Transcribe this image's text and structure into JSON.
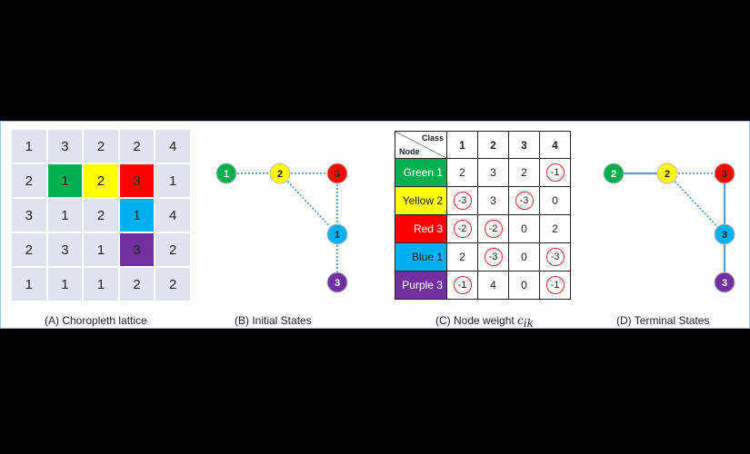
{
  "lattice": {
    "caption": "(A) Choropleth lattice",
    "rows": [
      [
        {
          "v": "1",
          "c": "#dde3ef"
        },
        {
          "v": "3",
          "c": "#dde3ef"
        },
        {
          "v": "2",
          "c": "#dde3ef"
        },
        {
          "v": "2",
          "c": "#dde3ef"
        },
        {
          "v": "4",
          "c": "#dde3ef"
        }
      ],
      [
        {
          "v": "2",
          "c": "#dde3ef"
        },
        {
          "v": "1",
          "c": "#00b050"
        },
        {
          "v": "2",
          "c": "#ffff00"
        },
        {
          "v": "3",
          "c": "#ff0000"
        },
        {
          "v": "1",
          "c": "#dde3ef"
        }
      ],
      [
        {
          "v": "3",
          "c": "#dde3ef"
        },
        {
          "v": "1",
          "c": "#dde3ef"
        },
        {
          "v": "2",
          "c": "#dde3ef"
        },
        {
          "v": "1",
          "c": "#00b0f0"
        },
        {
          "v": "4",
          "c": "#dde3ef"
        }
      ],
      [
        {
          "v": "2",
          "c": "#dde3ef"
        },
        {
          "v": "3",
          "c": "#dde3ef"
        },
        {
          "v": "1",
          "c": "#dde3ef"
        },
        {
          "v": "3",
          "c": "#7030a0"
        },
        {
          "v": "2",
          "c": "#dde3ef"
        }
      ],
      [
        {
          "v": "1",
          "c": "#dde3ef"
        },
        {
          "v": "1",
          "c": "#dde3ef"
        },
        {
          "v": "1",
          "c": "#dde3ef"
        },
        {
          "v": "2",
          "c": "#dde3ef"
        },
        {
          "v": "2",
          "c": "#dde3ef"
        }
      ]
    ]
  },
  "initial": {
    "caption": "(B) Initial States",
    "nodes": [
      {
        "label": "1",
        "color": "#00b050"
      },
      {
        "label": "2",
        "color": "#ffff00"
      },
      {
        "label": "3",
        "color": "#ff0000"
      },
      {
        "label": "1",
        "color": "#00b0f0"
      },
      {
        "label": "3",
        "color": "#7030a0"
      }
    ]
  },
  "weights": {
    "caption_prefix": "(C) Node weight ",
    "caption_symbol": "c",
    "caption_subscript": "ik",
    "corner_class": "Class",
    "corner_node": "Node",
    "columns": [
      "1",
      "2",
      "3",
      "4"
    ],
    "rows": [
      {
        "label": "Green 1",
        "color": "#00b050",
        "cells": [
          {
            "v": "2",
            "circ": false
          },
          {
            "v": "3",
            "circ": false
          },
          {
            "v": "2",
            "circ": false
          },
          {
            "v": "-1",
            "circ": true
          }
        ]
      },
      {
        "label": "Yellow 2",
        "color": "#ffff00",
        "cells": [
          {
            "v": "-3",
            "circ": true
          },
          {
            "v": "3",
            "circ": false
          },
          {
            "v": "-3",
            "circ": true
          },
          {
            "v": "0",
            "circ": false
          }
        ]
      },
      {
        "label": "Red 3",
        "color": "#ff0000",
        "cells": [
          {
            "v": "-2",
            "circ": true
          },
          {
            "v": "-2",
            "circ": true
          },
          {
            "v": "0",
            "circ": false
          },
          {
            "v": "2",
            "circ": false
          }
        ]
      },
      {
        "label": "Blue 1",
        "color": "#00b0f0",
        "cells": [
          {
            "v": "2",
            "circ": false
          },
          {
            "v": "-3",
            "circ": true
          },
          {
            "v": "0",
            "circ": false
          },
          {
            "v": "-3",
            "circ": true
          }
        ]
      },
      {
        "label": "Purple 3",
        "color": "#7030a0",
        "cells": [
          {
            "v": "-1",
            "circ": true
          },
          {
            "v": "4",
            "circ": false
          },
          {
            "v": "0",
            "circ": false
          },
          {
            "v": "-1",
            "circ": true
          }
        ]
      }
    ]
  },
  "terminal": {
    "caption": "(D) Terminal States",
    "nodes": [
      {
        "label": "2",
        "color": "#00b050"
      },
      {
        "label": "2",
        "color": "#ffff00"
      },
      {
        "label": "3",
        "color": "#ff0000"
      },
      {
        "label": "3",
        "color": "#00b0f0"
      },
      {
        "label": "3",
        "color": "#7030a0"
      }
    ]
  }
}
